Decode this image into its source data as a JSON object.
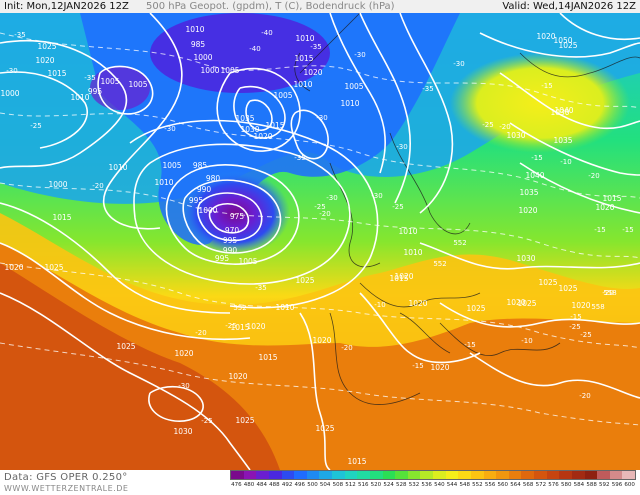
{
  "header": {
    "init": "Init: Mon,12JAN2026 12Z",
    "title": "500 hPa Geopot. (gpdm), T (C), Bodendruck (hPa)",
    "valid": "Valid: Wed,14JAN2026 12Z"
  },
  "footer": {
    "source": "Data: GFS OPER 0.250°",
    "site": "WWW.WETTERZENTRALE.DE"
  },
  "colorbar": {
    "ticks": [
      "476",
      "480",
      "484",
      "488",
      "492",
      "496",
      "500",
      "504",
      "508",
      "512",
      "516",
      "520",
      "524",
      "528",
      "532",
      "536",
      "540",
      "544",
      "548",
      "552",
      "556",
      "560",
      "564",
      "568",
      "572",
      "576",
      "580",
      "584",
      "588",
      "592",
      "596",
      "600"
    ],
    "colors": [
      "#7a0a8c",
      "#8a14b4",
      "#6a1ed0",
      "#4a28e0",
      "#2d4bf0",
      "#1f6cff",
      "#1e8af2",
      "#1ea8e6",
      "#1ec3d7",
      "#1fd4c0",
      "#20dca2",
      "#22e07e",
      "#2bdf55",
      "#55e23a",
      "#86e62e",
      "#b5ea26",
      "#dbee1f",
      "#f5ee1a",
      "#fbd915",
      "#fbc412",
      "#f7ad10",
      "#f1960e",
      "#ea7e0c",
      "#e0680c",
      "#d4550e",
      "#c64410",
      "#b63611",
      "#a22a12",
      "#8e2010",
      "#c05b5b",
      "#d48a8a",
      "#e8b8b8"
    ]
  },
  "map": {
    "pressure_labels": [
      "1025",
      "1020",
      "1015",
      "1005",
      "995",
      "1000",
      "1010",
      "1005",
      "1010",
      "985",
      "1000",
      "1000",
      "1005",
      "1035",
      "1030",
      "1020",
      "1015",
      "1005",
      "1010",
      "1020",
      "1015",
      "1010",
      "1005",
      "985",
      "980",
      "990",
      "995",
      "1000",
      "975",
      "970",
      "995",
      "990",
      "995",
      "1005",
      "1010",
      "1015",
      "1010",
      "1005",
      "1010",
      "1000",
      "1015",
      "1010",
      "1010",
      "1020",
      "1025",
      "1020",
      "1025",
      "1025",
      "1020",
      "1025",
      "1030",
      "1035",
      "1040",
      "1020",
      "1025",
      "1020",
      "1025",
      "1020",
      "1020",
      "1030",
      "1025",
      "1025",
      "1020",
      "1020",
      "1025",
      "1015",
      "1020",
      "1020",
      "1015",
      "1020",
      "1025",
      "1030",
      "1035",
      "1020",
      "1010",
      "1015",
      "1015",
      "1050",
      "1040",
      "1030"
    ],
    "temperature_labels": [
      "-35",
      "-30",
      "-25",
      "-20",
      "-35",
      "-30",
      "-40",
      "-40",
      "-35",
      "-30",
      "-30",
      "-35",
      "-30",
      "-25",
      "-20",
      "-30",
      "-25",
      "-30",
      "-35",
      "-30",
      "-25",
      "-20",
      "-15",
      "-10",
      "-20",
      "-15",
      "-15",
      "-20",
      "-15",
      "-25",
      "-25",
      "-10",
      "-15",
      "-15",
      "-20",
      "-25",
      "-30",
      "-35",
      "-20",
      "-25",
      "-10",
      "-15",
      "-20"
    ],
    "geopotential_labels": [
      "552",
      "552",
      "552",
      "558",
      "558"
    ]
  }
}
